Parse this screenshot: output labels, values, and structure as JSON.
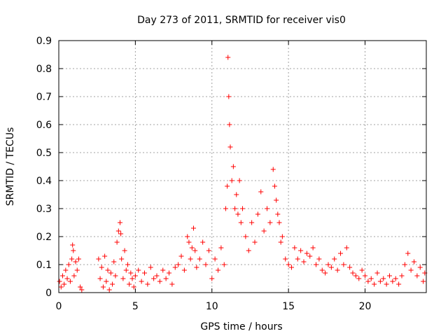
{
  "chart_data": {
    "type": "scatter",
    "title": "Day 273 of 2011, SRMTID for receiver vis0",
    "xlabel": "GPS time / hours",
    "ylabel": "SRMTID / TECUs",
    "xlim": [
      0,
      24
    ],
    "ylim": [
      0,
      0.9
    ],
    "x_ticks": [
      0,
      5,
      10,
      15,
      20
    ],
    "y_ticks": [
      0,
      0.1,
      0.2,
      0.3,
      0.4,
      0.5,
      0.6,
      0.7,
      0.8,
      0.9
    ],
    "grid": true,
    "marker": "+",
    "colors": {
      "series": "#ff0000",
      "grid": "#a0a0a0",
      "axis": "#000000"
    },
    "series": [
      {
        "name": "SRMTID",
        "x": [
          0.05,
          0.15,
          0.25,
          0.35,
          0.45,
          0.55,
          0.65,
          0.75,
          0.85,
          0.9,
          0.95,
          1.0,
          1.1,
          1.2,
          1.3,
          1.4,
          1.5,
          2.6,
          2.7,
          2.8,
          2.9,
          3.0,
          3.1,
          3.2,
          3.3,
          3.4,
          3.5,
          3.6,
          3.7,
          3.8,
          3.9,
          4.0,
          4.05,
          4.1,
          4.2,
          4.3,
          4.4,
          4.5,
          4.6,
          4.7,
          4.8,
          4.9,
          5.0,
          5.2,
          5.4,
          5.6,
          5.8,
          6.0,
          6.2,
          6.4,
          6.6,
          6.8,
          7.0,
          7.2,
          7.4,
          7.6,
          7.8,
          8.0,
          8.2,
          8.4,
          8.5,
          8.6,
          8.7,
          8.8,
          8.9,
          9.0,
          9.2,
          9.4,
          9.6,
          9.8,
          10.0,
          10.2,
          10.4,
          10.6,
          10.8,
          10.9,
          11.0,
          11.05,
          11.1,
          11.15,
          11.2,
          11.3,
          11.4,
          11.5,
          11.6,
          11.7,
          11.8,
          11.9,
          12.0,
          12.2,
          12.4,
          12.6,
          12.8,
          13.0,
          13.2,
          13.4,
          13.6,
          13.8,
          14.0,
          14.1,
          14.2,
          14.3,
          14.4,
          14.5,
          14.6,
          14.8,
          15.0,
          15.2,
          15.4,
          15.6,
          15.8,
          16.0,
          16.2,
          16.4,
          16.6,
          16.8,
          17.0,
          17.2,
          17.4,
          17.6,
          17.8,
          18.0,
          18.2,
          18.4,
          18.6,
          18.8,
          19.0,
          19.2,
          19.4,
          19.6,
          19.8,
          20.0,
          20.2,
          20.4,
          20.6,
          20.8,
          21.0,
          21.2,
          21.4,
          21.6,
          21.8,
          22.0,
          22.2,
          22.4,
          22.6,
          22.8,
          23.0,
          23.2,
          23.4,
          23.6,
          23.8,
          23.9
        ],
        "y": [
          0.04,
          0.02,
          0.06,
          0.03,
          0.08,
          0.05,
          0.1,
          0.04,
          0.12,
          0.17,
          0.15,
          0.06,
          0.11,
          0.08,
          0.12,
          0.02,
          0.01,
          0.12,
          0.05,
          0.09,
          0.02,
          0.13,
          0.04,
          0.08,
          0.01,
          0.07,
          0.03,
          0.11,
          0.06,
          0.18,
          0.22,
          0.25,
          0.21,
          0.12,
          0.05,
          0.15,
          0.08,
          0.1,
          0.03,
          0.07,
          0.05,
          0.02,
          0.06,
          0.08,
          0.04,
          0.07,
          0.03,
          0.09,
          0.05,
          0.06,
          0.04,
          0.08,
          0.05,
          0.07,
          0.03,
          0.09,
          0.1,
          0.13,
          0.08,
          0.2,
          0.18,
          0.12,
          0.16,
          0.23,
          0.15,
          0.09,
          0.12,
          0.18,
          0.1,
          0.15,
          0.05,
          0.12,
          0.08,
          0.16,
          0.1,
          0.3,
          0.38,
          0.84,
          0.7,
          0.6,
          0.52,
          0.4,
          0.45,
          0.3,
          0.35,
          0.28,
          0.4,
          0.25,
          0.3,
          0.2,
          0.15,
          0.25,
          0.18,
          0.28,
          0.36,
          0.22,
          0.3,
          0.25,
          0.44,
          0.38,
          0.33,
          0.28,
          0.25,
          0.18,
          0.2,
          0.12,
          0.1,
          0.09,
          0.16,
          0.12,
          0.15,
          0.11,
          0.14,
          0.13,
          0.16,
          0.1,
          0.12,
          0.08,
          0.07,
          0.1,
          0.09,
          0.12,
          0.08,
          0.14,
          0.1,
          0.16,
          0.09,
          0.07,
          0.06,
          0.05,
          0.08,
          0.06,
          0.04,
          0.05,
          0.03,
          0.07,
          0.04,
          0.05,
          0.03,
          0.06,
          0.04,
          0.05,
          0.03,
          0.06,
          0.1,
          0.14,
          0.08,
          0.11,
          0.06,
          0.09,
          0.04,
          0.07
        ]
      }
    ]
  }
}
